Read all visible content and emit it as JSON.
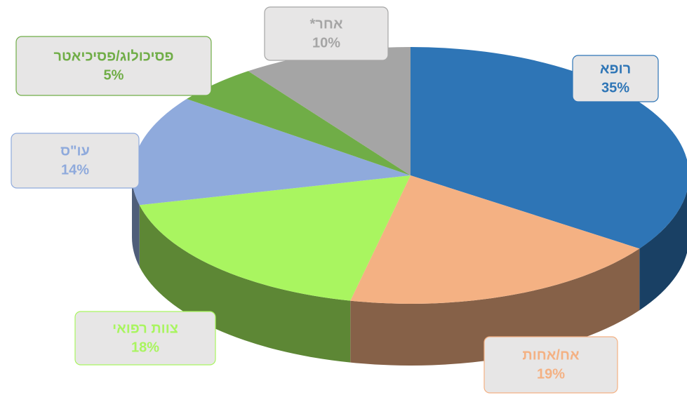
{
  "chart_data": {
    "type": "pie",
    "categories": [
      "רופא",
      "אח/אחות",
      "צוות רפואי",
      "עו\"ס",
      "פסיכולוג/פסיכיאטר",
      "אחר*"
    ],
    "values": [
      35,
      19,
      18,
      14,
      5,
      10
    ],
    "value_labels": [
      "35%",
      "19%",
      "18%",
      "14%",
      "5%",
      "10%"
    ],
    "colors": [
      "#2e75b6",
      "#f4b183",
      "#a9f560",
      "#8faadc",
      "#70ad47",
      "#a5a5a5"
    ]
  }
}
